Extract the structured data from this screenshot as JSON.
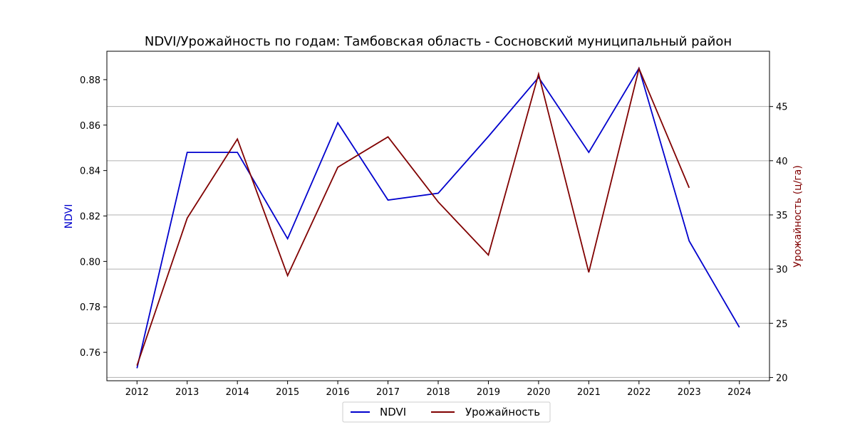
{
  "chart_data": {
    "type": "line",
    "title": "NDVI/Урожайность по годам: Тамбовская область - Сосновский муниципальный район",
    "xlabel": "",
    "x": [
      2012,
      2013,
      2014,
      2015,
      2016,
      2017,
      2018,
      2019,
      2020,
      2021,
      2022,
      2023,
      2024
    ],
    "y_left": {
      "label": "NDVI",
      "color": "#0000cd",
      "range": [
        0.7475,
        0.8925
      ],
      "ticks": [
        0.76,
        0.78,
        0.8,
        0.82,
        0.84,
        0.86,
        0.88
      ],
      "tick_labels": [
        "0.76",
        "0.78",
        "0.80",
        "0.82",
        "0.84",
        "0.86",
        "0.88"
      ]
    },
    "y_right": {
      "label": "Урожайность (ц/га)",
      "color": "#800000",
      "range": [
        19.7,
        50.1
      ],
      "ticks": [
        20,
        25,
        30,
        35,
        40,
        45
      ],
      "tick_labels": [
        "20",
        "25",
        "30",
        "35",
        "40",
        "45"
      ],
      "grid": true
    },
    "series": [
      {
        "name": "NDVI",
        "axis": "left",
        "color": "#0000cd",
        "values": [
          0.753,
          0.848,
          0.848,
          0.81,
          0.861,
          0.827,
          0.83,
          0.855,
          0.881,
          0.848,
          0.885,
          0.809,
          0.771
        ]
      },
      {
        "name": "Урожайность",
        "axis": "right",
        "color": "#800000",
        "values": [
          21.1,
          34.7,
          42.0,
          29.4,
          39.4,
          42.2,
          36.2,
          31.3,
          48.0,
          29.7,
          48.5,
          37.5,
          null
        ]
      }
    ],
    "legend": {
      "position": "bottom-center",
      "entries": [
        "NDVI",
        "Урожайность"
      ]
    }
  }
}
